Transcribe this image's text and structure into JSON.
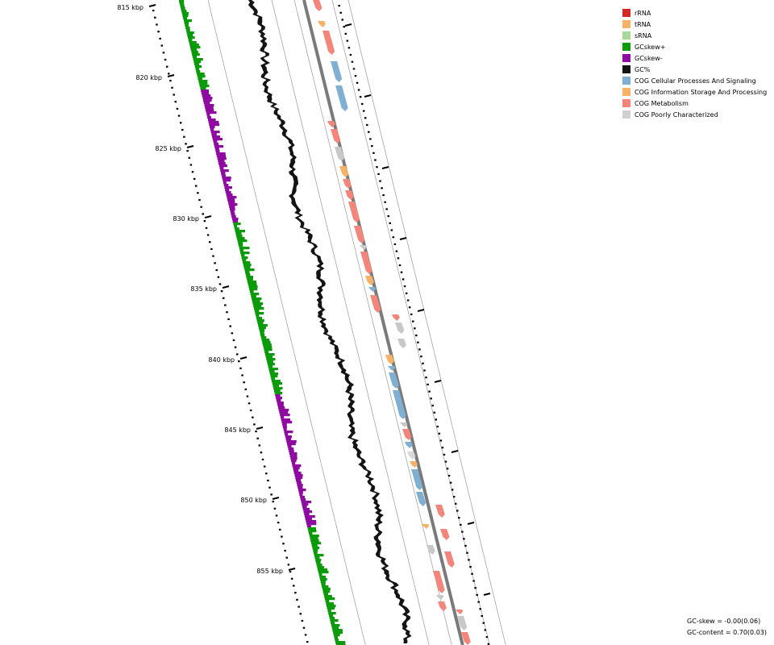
{
  "legend": [
    {
      "label": "rRNA",
      "color": "#d62728"
    },
    {
      "label": "tRNA",
      "color": "#f7b267"
    },
    {
      "label": "sRNA",
      "color": "#a6d89a"
    },
    {
      "label": "GCskew+",
      "color": "#0a9a0a"
    },
    {
      "label": "GCskew-",
      "color": "#8f0aa0"
    },
    {
      "label": "GC%",
      "color": "#141414"
    },
    {
      "label": "COG Cellular Processes And Signaling",
      "color": "#7fb0d4"
    },
    {
      "label": "COG Information Storage And Processing",
      "color": "#f7b267"
    },
    {
      "label": "COG Metabolism",
      "color": "#f4857a"
    },
    {
      "label": "COG Poorly Characterized",
      "color": "#d0d0d0"
    }
  ],
  "stats": {
    "gc_skew": "GC-skew = -0.00(0.06)",
    "gc_content": "GC-content = 0.70(0.03)"
  },
  "axis": {
    "labels": [
      "815 kbp",
      "820 kbp",
      "825 kbp",
      "830 kbp",
      "835 kbp",
      "840 kbp",
      "845 kbp",
      "850 kbp",
      "855 kbp"
    ]
  }
}
